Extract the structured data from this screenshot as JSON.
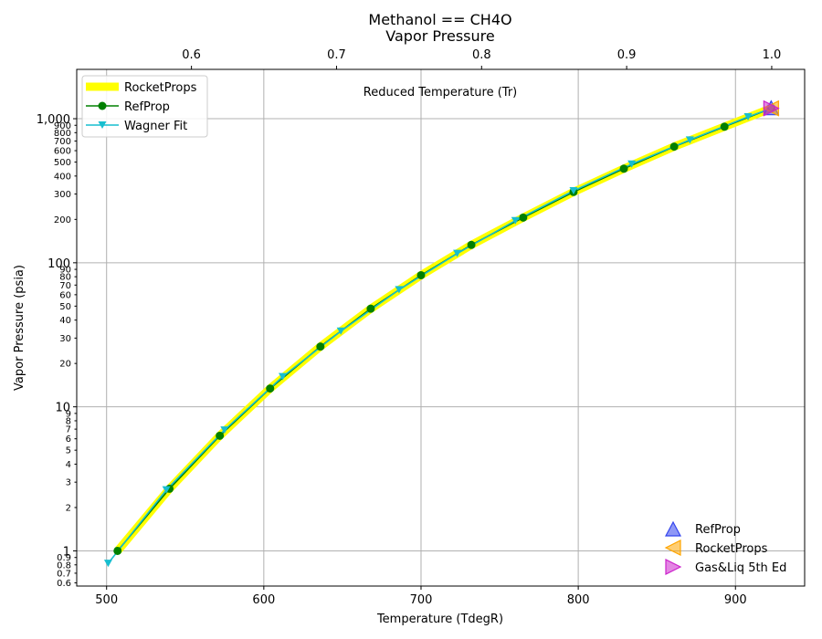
{
  "chart_data": {
    "type": "line",
    "title": "Methanol == CH4O",
    "subtitle": "Vapor Pressure",
    "xlabel": "Temperature (TdegR)",
    "ylabel": "Vapor Pressure (psia)",
    "top_axis_label": "Reduced Temperature (Tr)",
    "xlim": [
      481,
      944
    ],
    "ylim": [
      0.57,
      2200
    ],
    "yscale": "log",
    "top_xlim": [
      0.5209,
      1.0227
    ],
    "grid": true,
    "x_ticks": [
      "500",
      "600",
      "700",
      "800",
      "900"
    ],
    "x_tick_values": [
      500,
      600,
      700,
      800,
      900
    ],
    "top_ticks": [
      "0.6",
      "0.7",
      "0.8",
      "0.9",
      "1.0"
    ],
    "top_tick_values": [
      0.6,
      0.7,
      0.8,
      0.9,
      1.0
    ],
    "y_major_ticks": [
      "1",
      "10",
      "100",
      "1,000"
    ],
    "y_major_values": [
      1,
      10,
      100,
      1000
    ],
    "y_minor_ticks": [
      {
        "v": 0.6,
        "t": "0.6"
      },
      {
        "v": 0.7,
        "t": "0.7"
      },
      {
        "v": 0.8,
        "t": "0.8"
      },
      {
        "v": 0.9,
        "t": "0.9"
      },
      {
        "v": 2,
        "t": "2"
      },
      {
        "v": 3,
        "t": "3"
      },
      {
        "v": 4,
        "t": "4"
      },
      {
        "v": 5,
        "t": "5"
      },
      {
        "v": 6,
        "t": "6"
      },
      {
        "v": 7,
        "t": "7"
      },
      {
        "v": 8,
        "t": "8"
      },
      {
        "v": 9,
        "t": "9"
      },
      {
        "v": 20,
        "t": "20"
      },
      {
        "v": 30,
        "t": "30"
      },
      {
        "v": 40,
        "t": "40"
      },
      {
        "v": 50,
        "t": "50"
      },
      {
        "v": 60,
        "t": "60"
      },
      {
        "v": 70,
        "t": "70"
      },
      {
        "v": 80,
        "t": "80"
      },
      {
        "v": 90,
        "t": "90"
      },
      {
        "v": 200,
        "t": "200"
      },
      {
        "v": 300,
        "t": "300"
      },
      {
        "v": 400,
        "t": "400"
      },
      {
        "v": 500,
        "t": "500"
      },
      {
        "v": 600,
        "t": "600"
      },
      {
        "v": 700,
        "t": "700"
      },
      {
        "v": 800,
        "t": "800"
      },
      {
        "v": 900,
        "t": "900"
      }
    ],
    "legend_upper": {
      "placement": "top-left",
      "entries": [
        "RocketProps",
        "RefProp",
        "Wagner Fit"
      ]
    },
    "legend_lower": {
      "placement": "bottom-right",
      "entries": [
        "RefProp",
        "RocketProps",
        "Gas&Liq 5th Ed"
      ]
    },
    "series": [
      {
        "name": "RocketProps",
        "style": "thick-line",
        "color": "#ffff00",
        "x": [
          507,
          540,
          572,
          604,
          636,
          668,
          700,
          732,
          765,
          797,
          829,
          861,
          893,
          922.7
        ],
        "y": [
          1.0,
          2.7,
          6.3,
          13.4,
          26.2,
          48,
          82,
          133,
          206,
          310,
          450,
          640,
          880,
          1180
        ]
      },
      {
        "name": "RefProp",
        "style": "line-circle",
        "color": "#008000",
        "x": [
          507,
          540,
          572,
          604,
          636,
          668,
          700,
          732,
          765,
          797,
          829,
          861,
          893,
          922.7
        ],
        "y": [
          1.0,
          2.7,
          6.3,
          13.4,
          26.2,
          48,
          82,
          133,
          206,
          310,
          450,
          640,
          880,
          1180
        ]
      },
      {
        "name": "Wagner Fit",
        "style": "line-triangle-down",
        "color": "#17becf",
        "x": [
          501,
          538,
          575,
          612,
          649,
          686,
          723,
          760,
          797,
          834,
          871,
          908,
          922.7
        ],
        "y": [
          0.82,
          2.65,
          6.9,
          16.2,
          33.5,
          65,
          116,
          196,
          316,
          484,
          712,
          1030,
          1180
        ]
      }
    ],
    "critical_points": [
      {
        "name": "RefProp",
        "marker": "triangle-up",
        "color": "#3344ee",
        "x": 922.7,
        "y": 1180
      },
      {
        "name": "RocketProps",
        "marker": "triangle-left",
        "color": "#ffa500",
        "x": 922.7,
        "y": 1180
      },
      {
        "name": "Gas&Liq 5th Ed",
        "marker": "triangle-right",
        "color": "#cc22cc",
        "x": 922.7,
        "y": 1180
      }
    ]
  }
}
